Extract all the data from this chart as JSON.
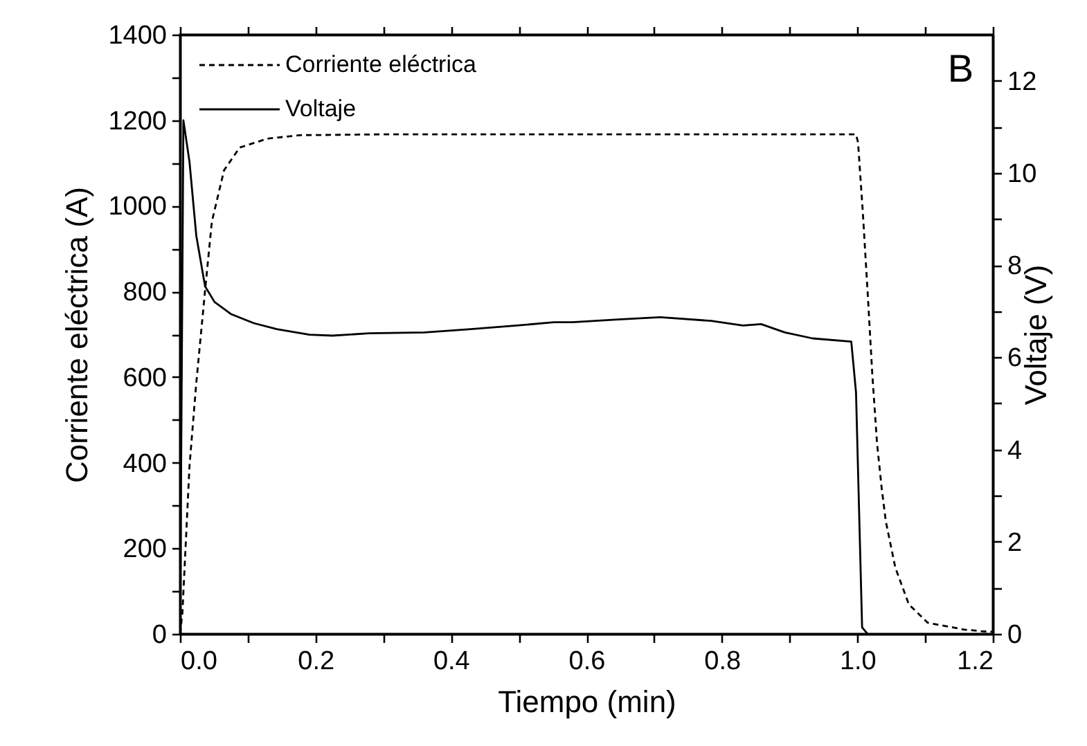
{
  "chart_data": {
    "type": "line",
    "xlabel": "Tiempo (min)",
    "ylabel": "Corriente eléctrica (A)",
    "y2label": "Voltaje (V)",
    "annotations": [
      "B"
    ],
    "xlim": [
      0,
      1.2
    ],
    "xticks": [
      {
        "value": 0,
        "label": "0.0"
      },
      {
        "value": 0.1,
        "label": null
      },
      {
        "value": 0.2,
        "label": "0.2"
      },
      {
        "value": 0.3,
        "label": null
      },
      {
        "value": 0.4,
        "label": "0.4"
      },
      {
        "value": 0.5,
        "label": null
      },
      {
        "value": 0.6,
        "label": "0.6"
      },
      {
        "value": 0.7,
        "label": null
      },
      {
        "value": 0.8,
        "label": "0.8"
      },
      {
        "value": 0.9,
        "label": null
      },
      {
        "value": 1.0,
        "label": "1.0"
      },
      {
        "value": 1.1,
        "label": null
      },
      {
        "value": 1.2,
        "label": "1.2"
      }
    ],
    "ylim": [
      0,
      1400
    ],
    "yticks": [
      0,
      {
        "value": 100,
        "label": null
      },
      200,
      {
        "value": 300,
        "label": null
      },
      400,
      {
        "value": 500,
        "label": null
      },
      600,
      {
        "value": 700,
        "label": null
      },
      800,
      {
        "value": 900,
        "label": null
      },
      1000,
      {
        "value": 1100,
        "label": null
      },
      1200,
      {
        "value": 1300,
        "label": null
      },
      1400
    ],
    "y2lim": [
      0,
      13
    ],
    "y2ticks": [
      0,
      {
        "value": 1,
        "label": null
      },
      2,
      {
        "value": 3,
        "label": null
      },
      4,
      {
        "value": 5,
        "label": null
      },
      6,
      {
        "value": 7,
        "label": null
      },
      8,
      {
        "value": 9,
        "label": null
      },
      10,
      {
        "value": 11,
        "label": null
      },
      12
    ],
    "legend": "top left",
    "grid": false,
    "series": [
      {
        "name": "Corriente eléctrica",
        "color": "#000000",
        "line_style": "dashed",
        "x": [
          0,
          0.0035,
          0.014,
          0.024,
          0.037,
          0.047,
          0.065,
          0.088,
          0.129,
          0.177,
          0.3,
          0.5,
          0.7,
          0.9,
          0.998,
          1.001,
          1.008,
          1.015,
          1.022,
          1.029,
          1.036,
          1.042,
          1.056,
          1.076,
          1.104,
          1.158,
          1.185,
          1.2
        ],
        "values": [
          0,
          48,
          392,
          586,
          802,
          963,
          1083,
          1136,
          1157,
          1165,
          1167,
          1167,
          1167,
          1167,
          1167,
          1148,
          986,
          802,
          608,
          446,
          339,
          263,
          155,
          69,
          26,
          10,
          6,
          5
        ]
      },
      {
        "name": "Voltaje",
        "color": "#000000",
        "line_style": "solid",
        "axis": "y2",
        "x": [
          0,
          0.005,
          0.014,
          0.024,
          0.037,
          0.051,
          0.075,
          0.109,
          0.143,
          0.191,
          0.225,
          0.279,
          0.361,
          0.429,
          0.497,
          0.552,
          0.579,
          0.647,
          0.709,
          0.784,
          0.831,
          0.858,
          0.893,
          0.934,
          0.991,
          0.998,
          1.007,
          1.015
        ],
        "values": [
          0,
          11.14,
          10.24,
          8.64,
          7.54,
          7.2,
          6.94,
          6.74,
          6.61,
          6.49,
          6.47,
          6.52,
          6.54,
          6.61,
          6.69,
          6.76,
          6.76,
          6.82,
          6.87,
          6.79,
          6.69,
          6.72,
          6.54,
          6.41,
          6.34,
          5.24,
          0.14,
          0
        ]
      }
    ]
  }
}
